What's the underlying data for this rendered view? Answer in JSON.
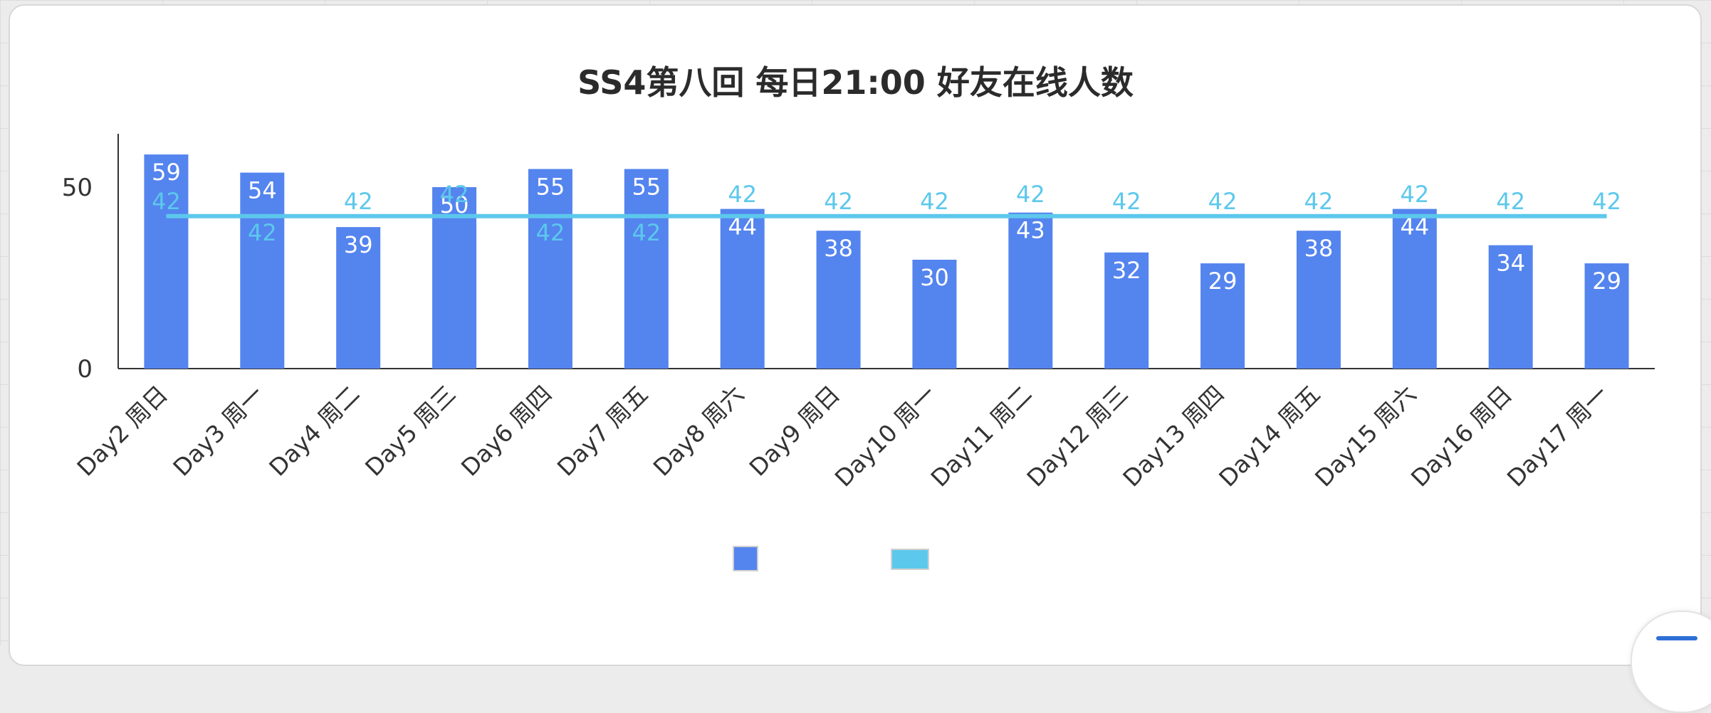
{
  "chart_data": {
    "type": "bar",
    "title": "SS4第八回 每日21:00 好友在线人数",
    "categories": [
      "Day2 周日",
      "Day3 周一",
      "Day4 周二",
      "Day5 周三",
      "Day6 周四",
      "Day7 周五",
      "Day8 周六",
      "Day9 周日",
      "Day10 周一",
      "Day11 周二",
      "Day12 周三",
      "Day13 周四",
      "Day14 周五",
      "Day15 周六",
      "Day16 周日",
      "Day17 周一"
    ],
    "series": [
      {
        "type": "bar",
        "values": [
          59,
          54,
          39,
          50,
          55,
          55,
          44,
          38,
          30,
          43,
          32,
          29,
          38,
          44,
          34,
          29
        ],
        "color": "#5484ee"
      },
      {
        "type": "line",
        "values": [
          42,
          42,
          42,
          42,
          42,
          42,
          42,
          42,
          42,
          42,
          42,
          42,
          42,
          42,
          42,
          42
        ],
        "color": "#5cc8ec"
      }
    ],
    "yticks": [
      "0",
      "50"
    ],
    "ylim": [
      0,
      65
    ],
    "grid": false,
    "legend": "bottom-center"
  }
}
